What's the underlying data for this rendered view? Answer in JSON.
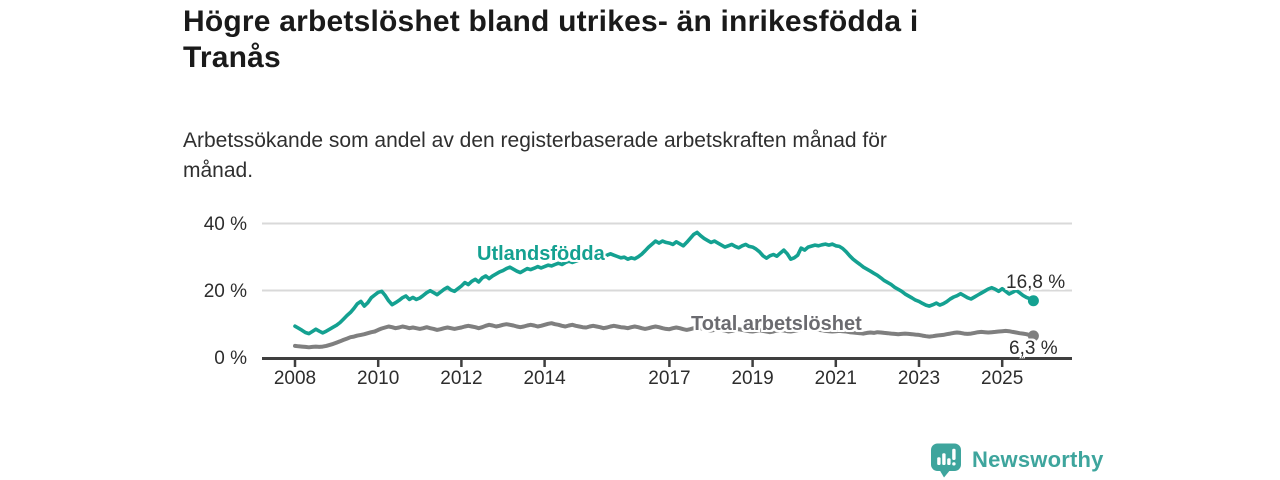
{
  "header": {
    "title_line1": "Högre arbetslöshet bland utrikes- än inrikesfödda i",
    "title_line2": "Tranås",
    "subtitle_line1": "Arbetssökande som andel av den registerbaserade arbetskraften månad för",
    "subtitle_line2": "månad."
  },
  "footer": {
    "brand": "Newsworthy",
    "brand_color": "#3ea59d"
  },
  "colors": {
    "background": "#ffffff",
    "title_text": "#1a1a1a",
    "subtitle_text": "#2f2f2f",
    "axis_line": "#3f3f3f",
    "axis_text": "#2d2d2d",
    "gridline": "#d9d9d9",
    "accent_teal": "#14a191",
    "neutral_gray": "#7f7f7f"
  },
  "chart_data": {
    "type": "line",
    "title": "Högre arbetslöshet bland utrikes- än inrikesfödda i Tranås",
    "subtitle": "Arbetssökande som andel av den registerbaserade arbetskraften månad för månad.",
    "x_unit": "month",
    "x_start": "2008-01",
    "x_end": "2025-10",
    "ylim": [
      0,
      44
    ],
    "grid": "horizontal-only",
    "legend_position": "inline-labels",
    "y_ticks": [
      {
        "value": 0,
        "label": "0 %"
      },
      {
        "value": 20,
        "label": "20 %"
      },
      {
        "value": 40,
        "label": "40 %"
      }
    ],
    "x_ticks": [
      2008,
      2010,
      2012,
      2014,
      2017,
      2019,
      2021,
      2023,
      2025
    ],
    "series": [
      {
        "name": "Utlandsfödda",
        "color": "#14a191",
        "label_color": "#14a191",
        "end_label": "16,8 %",
        "end_value": 16.8,
        "values": [
          9.2,
          8.6,
          8.0,
          7.3,
          7.0,
          7.6,
          8.3,
          7.7,
          7.2,
          7.7,
          8.3,
          8.9,
          9.5,
          10.3,
          11.3,
          12.4,
          13.3,
          14.5,
          15.9,
          16.6,
          15.2,
          16.2,
          17.7,
          18.5,
          19.3,
          19.6,
          18.4,
          16.8,
          15.6,
          16.2,
          16.9,
          17.7,
          18.2,
          17.2,
          17.8,
          17.2,
          17.6,
          18.4,
          19.2,
          19.8,
          19.2,
          18.6,
          19.4,
          20.2,
          20.8,
          20.0,
          19.6,
          20.4,
          21.2,
          22.2,
          21.6,
          22.6,
          23.2,
          22.4,
          23.6,
          24.2,
          23.4,
          24.2,
          24.8,
          25.4,
          25.8,
          26.4,
          26.8,
          26.2,
          25.6,
          25.2,
          25.8,
          26.4,
          26.1,
          26.5,
          27.0,
          26.6,
          27.0,
          27.4,
          27.2,
          27.6,
          28.0,
          27.6,
          28.2,
          28.6,
          28.2,
          28.6,
          29.0,
          29.4,
          29.7,
          30.1,
          30.4,
          30.0,
          30.4,
          30.0,
          30.4,
          30.8,
          30.4,
          30.0,
          29.6,
          29.8,
          29.2,
          29.6,
          29.3,
          29.9,
          30.7,
          31.7,
          32.8,
          33.7,
          34.6,
          34.0,
          34.6,
          34.2,
          34.0,
          33.6,
          34.4,
          33.8,
          33.2,
          34.2,
          35.4,
          36.6,
          37.2,
          36.2,
          35.4,
          34.8,
          34.2,
          34.6,
          34.0,
          33.4,
          32.8,
          33.2,
          33.6,
          33.0,
          32.6,
          33.2,
          33.6,
          33.0,
          32.8,
          32.2,
          31.4,
          30.2,
          29.5,
          30.2,
          30.6,
          30.1,
          31.0,
          31.9,
          30.8,
          29.2,
          29.6,
          30.4,
          32.5,
          31.9,
          32.8,
          33.1,
          33.4,
          33.2,
          33.5,
          33.7,
          33.4,
          33.7,
          33.2,
          33.0,
          32.4,
          31.4,
          30.2,
          29.2,
          28.4,
          27.6,
          26.8,
          26.2,
          25.6,
          25.0,
          24.4,
          23.6,
          22.8,
          22.2,
          21.6,
          20.8,
          20.2,
          19.6,
          18.8,
          18.2,
          17.6,
          17.0,
          16.6,
          16.0,
          15.5,
          15.2,
          15.6,
          16.1,
          15.5,
          15.9,
          16.5,
          17.3,
          17.9,
          18.3,
          18.9,
          18.3,
          17.7,
          17.3,
          17.9,
          18.5,
          19.1,
          19.7,
          20.3,
          20.7,
          20.2,
          19.6,
          20.4,
          19.6,
          18.8,
          19.3,
          19.9,
          19.2,
          18.4,
          17.8,
          17.4,
          16.8
        ]
      },
      {
        "name": "Total arbetslöshet",
        "color": "#7f7f7f",
        "label_color": "#6b6b70",
        "end_label": "6,3 %",
        "end_value": 6.3,
        "values": [
          3.3,
          3.2,
          3.1,
          3.0,
          2.9,
          3.0,
          3.1,
          3.0,
          3.1,
          3.3,
          3.6,
          3.9,
          4.3,
          4.7,
          5.1,
          5.5,
          5.9,
          6.1,
          6.4,
          6.6,
          6.8,
          7.1,
          7.4,
          7.6,
          8.1,
          8.5,
          8.8,
          9.1,
          8.9,
          8.6,
          8.8,
          9.1,
          8.9,
          8.6,
          8.8,
          8.6,
          8.4,
          8.6,
          8.9,
          8.6,
          8.4,
          8.1,
          8.3,
          8.6,
          8.8,
          8.6,
          8.4,
          8.6,
          8.8,
          9.1,
          9.3,
          9.1,
          8.9,
          8.6,
          8.9,
          9.3,
          9.6,
          9.4,
          9.1,
          9.3,
          9.6,
          9.8,
          9.6,
          9.4,
          9.1,
          8.9,
          9.1,
          9.4,
          9.6,
          9.4,
          9.1,
          9.3,
          9.6,
          9.9,
          10.1,
          9.8,
          9.6,
          9.3,
          9.1,
          9.4,
          9.6,
          9.3,
          9.1,
          8.9,
          8.8,
          9.1,
          9.3,
          9.1,
          8.9,
          8.6,
          8.8,
          9.1,
          9.3,
          9.1,
          8.9,
          8.8,
          8.6,
          8.9,
          9.1,
          8.9,
          8.6,
          8.4,
          8.6,
          8.9,
          9.1,
          8.9,
          8.6,
          8.4,
          8.3,
          8.6,
          8.8,
          8.6,
          8.3,
          8.1,
          8.3,
          8.6,
          8.8,
          8.6,
          8.3,
          8.1,
          7.9,
          8.1,
          8.3,
          8.1,
          7.9,
          7.6,
          7.8,
          8.1,
          8.3,
          8.1,
          7.9,
          7.7,
          7.6,
          7.8,
          8.0,
          7.8,
          7.6,
          7.4,
          7.6,
          7.9,
          8.1,
          7.9,
          7.7,
          7.6,
          7.8,
          8.0,
          8.2,
          8.5,
          8.7,
          8.5,
          8.3,
          8.1,
          8.0,
          7.8,
          7.7,
          7.6,
          7.7,
          7.8,
          7.7,
          7.6,
          7.4,
          7.3,
          7.2,
          7.1,
          7.0,
          7.2,
          7.3,
          7.2,
          7.4,
          7.3,
          7.2,
          7.1,
          7.0,
          6.9,
          6.8,
          6.9,
          7.0,
          6.9,
          6.8,
          6.7,
          6.6,
          6.4,
          6.2,
          6.1,
          6.2,
          6.4,
          6.5,
          6.6,
          6.8,
          7.0,
          7.2,
          7.3,
          7.2,
          7.0,
          6.9,
          7.0,
          7.2,
          7.4,
          7.5,
          7.4,
          7.3,
          7.4,
          7.5,
          7.6,
          7.7,
          7.8,
          7.7,
          7.5,
          7.3,
          7.1,
          7.0,
          6.8,
          6.5,
          6.3
        ]
      }
    ]
  }
}
